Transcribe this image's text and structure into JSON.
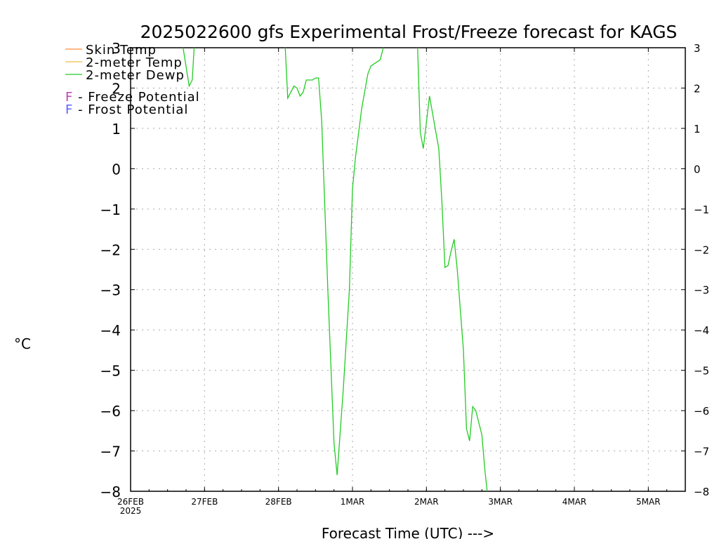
{
  "chart_data": {
    "type": "line",
    "title": "2025022600 gfs Experimental Frost/Freeze forecast for KAGS",
    "xlabel": "Forecast Time (UTC) --->",
    "ylabel": "°C",
    "ylim": [
      -8,
      3
    ],
    "yticks": [
      3,
      2,
      1,
      0,
      -1,
      -2,
      -3,
      -4,
      -5,
      -6,
      -7,
      -8
    ],
    "xlim": [
      "2025-02-26T00",
      "2025-03-05T12"
    ],
    "xticks": [
      {
        "date": "2025-02-26T00",
        "label": "26FEB",
        "sublabel": "2025"
      },
      {
        "date": "2025-02-27T00",
        "label": "27FEB",
        "sublabel": ""
      },
      {
        "date": "2025-02-28T00",
        "label": "28FEB",
        "sublabel": ""
      },
      {
        "date": "2025-03-01T00",
        "label": "1MAR",
        "sublabel": ""
      },
      {
        "date": "2025-03-02T00",
        "label": "2MAR",
        "sublabel": ""
      },
      {
        "date": "2025-03-03T00",
        "label": "3MAR",
        "sublabel": ""
      },
      {
        "date": "2025-03-04T00",
        "label": "4MAR",
        "sublabel": ""
      },
      {
        "date": "2025-03-05T00",
        "label": "5MAR",
        "sublabel": ""
      }
    ],
    "grid": true,
    "legend": {
      "placement": "top-left",
      "entries": [
        {
          "label": "Skin Temp",
          "color": "#ff8c3a"
        },
        {
          "label": "2-meter Temp",
          "color": "#e8c040"
        },
        {
          "label": "2-meter Dewp",
          "color": "#22cc22"
        }
      ],
      "potentials": [
        {
          "letter": "F",
          "label": " - Freeze Potential",
          "color": "#c040c0"
        },
        {
          "letter": "F",
          "label": " - Frost Potential",
          "color": "#6060ff"
        }
      ]
    },
    "series": [
      {
        "name": "2-meter Dewp",
        "color": "#22cc22",
        "points": [
          [
            "2025-02-26T16",
            3.5
          ],
          [
            "2025-02-26T19",
            2.05
          ],
          [
            "2025-02-26T20",
            2.2
          ],
          [
            "2025-02-26T21",
            3.5
          ],
          null,
          [
            "2025-02-28T02",
            3.3
          ],
          [
            "2025-02-28T03",
            1.75
          ],
          [
            "2025-02-28T05",
            2.05
          ],
          [
            "2025-02-28T06",
            2.0
          ],
          [
            "2025-02-28T07",
            1.8
          ],
          [
            "2025-02-28T08",
            1.9
          ],
          [
            "2025-02-28T09",
            2.2
          ],
          [
            "2025-02-28T11",
            2.2
          ],
          [
            "2025-02-28T12",
            2.25
          ],
          [
            "2025-02-28T13",
            2.25
          ],
          [
            "2025-02-28T14",
            1.2
          ],
          [
            "2025-02-28T16",
            -3.0
          ],
          [
            "2025-02-28T18",
            -6.8
          ],
          [
            "2025-02-28T19",
            -7.6
          ],
          [
            "2025-02-28T21",
            -5.5
          ],
          [
            "2025-02-28T23",
            -3.0
          ],
          [
            "2025-03-01T00",
            -0.5
          ],
          [
            "2025-03-01T01",
            0.3
          ],
          [
            "2025-03-01T03",
            1.5
          ],
          [
            "2025-03-01T05",
            2.35
          ],
          [
            "2025-03-01T06",
            2.55
          ],
          [
            "2025-03-01T09",
            2.7
          ],
          [
            "2025-03-01T10",
            3.0
          ],
          [
            "2025-03-01T11",
            3.5
          ],
          null,
          [
            "2025-03-01T21",
            3.3
          ],
          [
            "2025-03-01T22",
            0.9
          ],
          [
            "2025-03-01T23",
            0.5
          ],
          [
            "2025-03-02T01",
            1.8
          ],
          [
            "2025-03-02T04",
            0.5
          ],
          [
            "2025-03-02T05",
            -0.8
          ],
          [
            "2025-03-02T06",
            -2.45
          ],
          [
            "2025-03-02T07",
            -2.4
          ],
          [
            "2025-03-02T08",
            -2.05
          ],
          [
            "2025-03-02T09",
            -1.75
          ],
          [
            "2025-03-02T10",
            -2.5
          ],
          [
            "2025-03-02T12",
            -4.5
          ],
          [
            "2025-03-02T13",
            -6.45
          ],
          [
            "2025-03-02T14",
            -6.75
          ],
          [
            "2025-03-02T15",
            -5.9
          ],
          [
            "2025-03-02T16",
            -6.0
          ],
          [
            "2025-03-02T18",
            -6.6
          ],
          [
            "2025-03-02T19",
            -7.5
          ],
          [
            "2025-03-02T20",
            -8.2
          ]
        ]
      }
    ]
  }
}
